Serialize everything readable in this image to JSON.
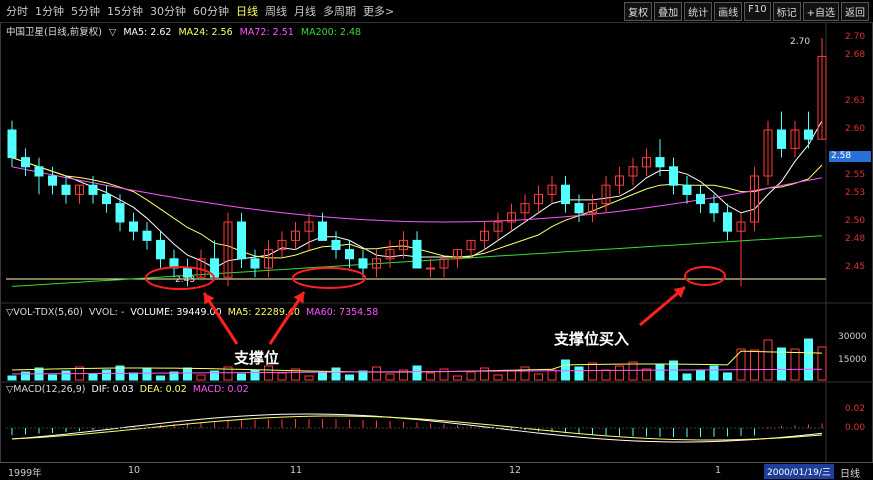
{
  "menu": {
    "periods": [
      "分时",
      "1分钟",
      "5分钟",
      "15分钟",
      "30分钟",
      "60分钟",
      "日线",
      "周线",
      "月线",
      "多周期",
      "更多>"
    ],
    "active_period": "日线",
    "tools": [
      "复权",
      "叠加",
      "统计",
      "画线",
      "F10",
      "标记",
      "+自选",
      "返回"
    ]
  },
  "stock": {
    "title": "中国卫星(日线,前复权)",
    "ma5": "MA5: 2.62",
    "ma24": "MA24: 2.56",
    "ma72": "MA72: 2.51",
    "ma200": "MA200: 2.48",
    "current_price": "2.58",
    "high_label": "2.70",
    "low_label": "2.43"
  },
  "volume": {
    "title": "▽VOL-TDX(5,60)",
    "vvol": "VVOL: -",
    "volume": "VOLUME: 39449.00",
    "ma5": "MA5: 22289.40",
    "ma60": "MA60: 7354.58",
    "axis": [
      "30000",
      "15000"
    ]
  },
  "macd": {
    "title": "▽MACD(12,26,9)",
    "dif": "DIF: 0.03",
    "dea": "DEA: 0.02",
    "macd": "MACD: 0.02",
    "axis": [
      "0.02",
      "0.00"
    ]
  },
  "price_axis": [
    "2.70",
    "2.68",
    "2.63",
    "2.60",
    "2.55",
    "2.53",
    "2.50",
    "2.48",
    "2.45"
  ],
  "time_axis": {
    "year": "1999年",
    "months": [
      "10",
      "11",
      "12",
      "1"
    ],
    "cursor_date": "2000/01/19/三",
    "period": "日线"
  },
  "annotations": {
    "support": "支撑位",
    "support_buy": "支撑位买入"
  },
  "colors": {
    "up": "#ff3a3a",
    "down": "#54ffff",
    "ma5": "#ffffff",
    "ma24": "#ffff66",
    "ma72": "#ff55ff",
    "ma200": "#33dd33",
    "annotation": "#ff2020"
  },
  "chart_data": {
    "type": "candlestick",
    "candles": [
      [
        2.6,
        2.61,
        2.56,
        2.57
      ],
      [
        2.57,
        2.58,
        2.55,
        2.56
      ],
      [
        2.56,
        2.57,
        2.53,
        2.55
      ],
      [
        2.55,
        2.56,
        2.53,
        2.54
      ],
      [
        2.54,
        2.55,
        2.52,
        2.53
      ],
      [
        2.53,
        2.54,
        2.52,
        2.54
      ],
      [
        2.54,
        2.55,
        2.52,
        2.53
      ],
      [
        2.53,
        2.54,
        2.51,
        2.52
      ],
      [
        2.52,
        2.53,
        2.49,
        2.5
      ],
      [
        2.5,
        2.51,
        2.48,
        2.49
      ],
      [
        2.49,
        2.5,
        2.47,
        2.48
      ],
      [
        2.48,
        2.49,
        2.45,
        2.46
      ],
      [
        2.46,
        2.47,
        2.44,
        2.45
      ],
      [
        2.45,
        2.46,
        2.43,
        2.44
      ],
      [
        2.44,
        2.47,
        2.44,
        2.46
      ],
      [
        2.46,
        2.48,
        2.44,
        2.44
      ],
      [
        2.44,
        2.51,
        2.43,
        2.5
      ],
      [
        2.5,
        2.51,
        2.45,
        2.46
      ],
      [
        2.46,
        2.47,
        2.44,
        2.45
      ],
      [
        2.45,
        2.48,
        2.44,
        2.47
      ],
      [
        2.47,
        2.49,
        2.46,
        2.48
      ],
      [
        2.48,
        2.5,
        2.47,
        2.49
      ],
      [
        2.49,
        2.51,
        2.47,
        2.5
      ],
      [
        2.5,
        2.51,
        2.48,
        2.48
      ],
      [
        2.48,
        2.49,
        2.46,
        2.47
      ],
      [
        2.47,
        2.48,
        2.45,
        2.46
      ],
      [
        2.46,
        2.47,
        2.44,
        2.45
      ],
      [
        2.45,
        2.47,
        2.44,
        2.46
      ],
      [
        2.46,
        2.48,
        2.45,
        2.47
      ],
      [
        2.47,
        2.49,
        2.46,
        2.48
      ],
      [
        2.48,
        2.49,
        2.45,
        2.45
      ],
      [
        2.45,
        2.46,
        2.44,
        2.45
      ],
      [
        2.45,
        2.46,
        2.44,
        2.46
      ],
      [
        2.46,
        2.47,
        2.45,
        2.47
      ],
      [
        2.47,
        2.48,
        2.46,
        2.48
      ],
      [
        2.48,
        2.5,
        2.47,
        2.49
      ],
      [
        2.49,
        2.51,
        2.48,
        2.5
      ],
      [
        2.5,
        2.52,
        2.49,
        2.51
      ],
      [
        2.51,
        2.53,
        2.5,
        2.52
      ],
      [
        2.52,
        2.54,
        2.51,
        2.53
      ],
      [
        2.53,
        2.55,
        2.52,
        2.54
      ],
      [
        2.54,
        2.55,
        2.51,
        2.52
      ],
      [
        2.52,
        2.53,
        2.5,
        2.51
      ],
      [
        2.51,
        2.53,
        2.5,
        2.52
      ],
      [
        2.52,
        2.55,
        2.51,
        2.54
      ],
      [
        2.54,
        2.56,
        2.53,
        2.55
      ],
      [
        2.55,
        2.57,
        2.54,
        2.56
      ],
      [
        2.56,
        2.58,
        2.55,
        2.57
      ],
      [
        2.57,
        2.59,
        2.55,
        2.56
      ],
      [
        2.56,
        2.57,
        2.53,
        2.54
      ],
      [
        2.54,
        2.55,
        2.52,
        2.53
      ],
      [
        2.53,
        2.54,
        2.51,
        2.52
      ],
      [
        2.52,
        2.53,
        2.5,
        2.51
      ],
      [
        2.51,
        2.52,
        2.48,
        2.49
      ],
      [
        2.49,
        2.51,
        2.43,
        2.5
      ],
      [
        2.5,
        2.56,
        2.49,
        2.55
      ],
      [
        2.55,
        2.61,
        2.54,
        2.6
      ],
      [
        2.6,
        2.62,
        2.57,
        2.58
      ],
      [
        2.58,
        2.61,
        2.57,
        2.6
      ],
      [
        2.6,
        2.62,
        2.58,
        2.59
      ],
      [
        2.59,
        2.7,
        2.59,
        2.68
      ]
    ],
    "support_level": 2.43,
    "ylim": [
      2.42,
      2.71
    ],
    "annotations": [
      "支撑位",
      "支撑位买入"
    ]
  }
}
